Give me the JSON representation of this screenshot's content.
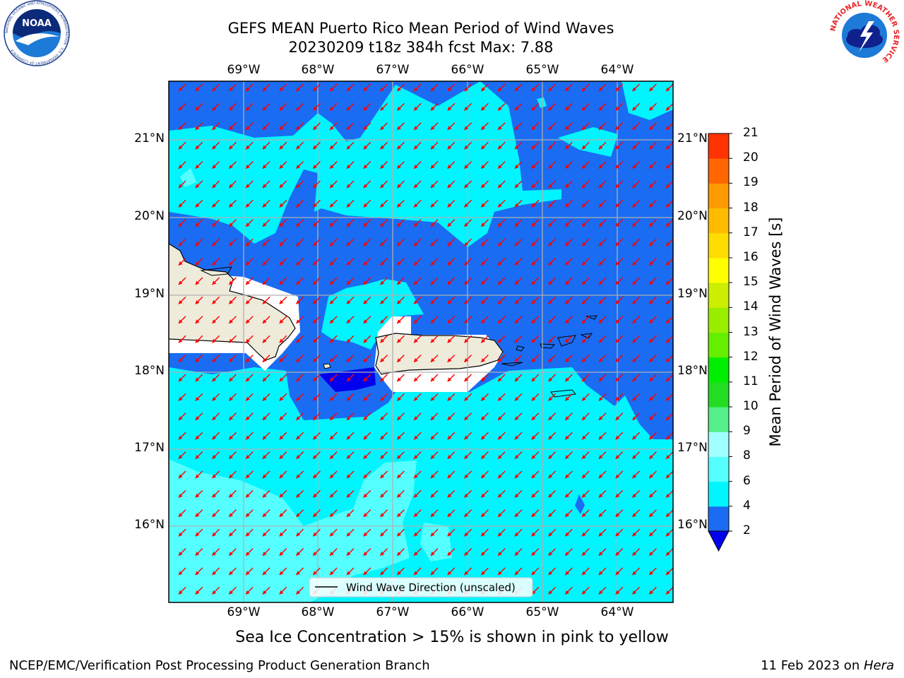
{
  "header": {
    "title_line1": "GEFS MEAN Puerto Rico Mean Period of Wind Waves",
    "title_line2": "20230209 t18z 384h fcst   Max: 7.88"
  },
  "logos": {
    "noaa_text": "NOAA",
    "noaa_ring_text": "NATIONAL OCEANIC AND ATMOSPHERIC ADMINISTRATION · U.S. DEPARTMENT OF COMMERCE",
    "nws_ring_text": "NATIONAL WEATHER SERVICE"
  },
  "map": {
    "lon_ticks": [
      "69°W",
      "68°W",
      "67°W",
      "66°W",
      "65°W",
      "64°W"
    ],
    "lat_ticks": [
      "21°N",
      "20°N",
      "19°N",
      "18°N",
      "17°N",
      "16°N"
    ],
    "legend_label": "Wind Wave Direction (unscaled)",
    "vector_color": "#ff0000",
    "land_color": "#eeebdb"
  },
  "colorbar": {
    "label": "Mean Period of Wind Waves [s]",
    "ticks": [
      "2",
      "4",
      "6",
      "8",
      "9",
      "10",
      "11",
      "12",
      "13",
      "14",
      "15",
      "16",
      "17",
      "18",
      "19",
      "20",
      "21"
    ],
    "colors": [
      "#0000ee",
      "#1a6cf2",
      "#00f5ff",
      "#55ffff",
      "#a0ffff",
      "#55ee88",
      "#22dd22",
      "#00ee00",
      "#66ee00",
      "#99ee00",
      "#ccee00",
      "#ffff00",
      "#ffdd00",
      "#ffbb00",
      "#ff9900",
      "#ff6600",
      "#ff3300",
      "#ff0000"
    ],
    "extend_min_color": "#0000ee"
  },
  "subtitle": "Sea Ice Concentration > 15% is shown in pink to yellow",
  "footer": {
    "left": "NCEP/EMC/Verification Post Processing Product Generation Branch",
    "right_prefix": "11 Feb 2023 on ",
    "right_host": "Hera"
  }
}
